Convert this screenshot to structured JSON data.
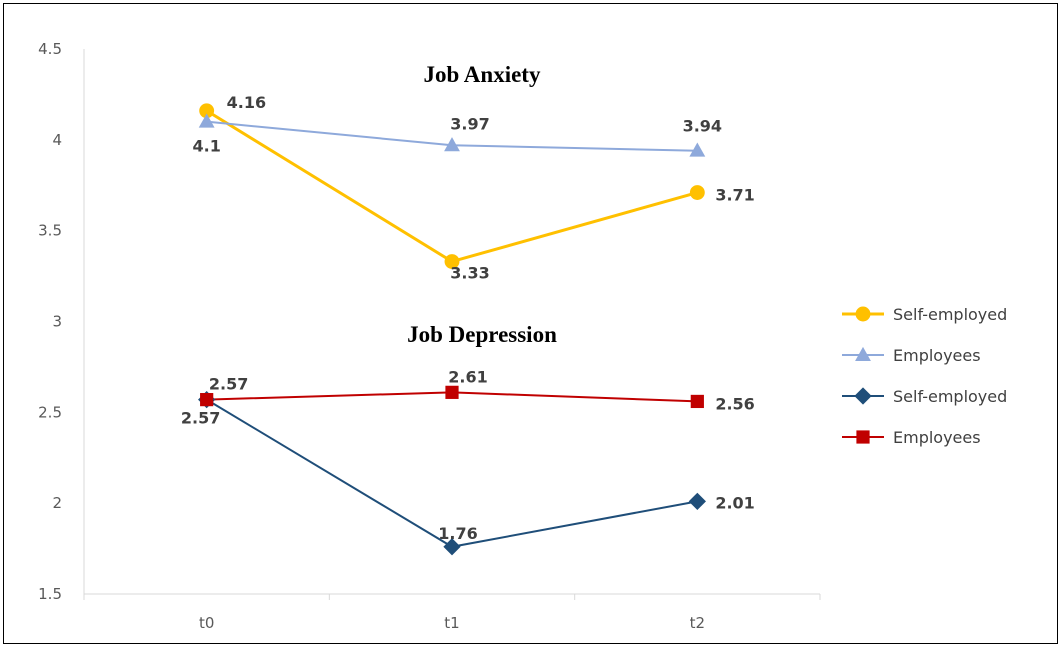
{
  "chart_data": {
    "type": "line",
    "x": [
      "t0",
      "t1",
      "t2"
    ],
    "ylim": [
      1.5,
      4.5
    ],
    "yticks": [
      "1.5",
      "2",
      "2.5",
      "3",
      "3.5",
      "4",
      "4.5"
    ],
    "grid": false,
    "legend_position": "right",
    "annotations": [
      "Job Anxiety",
      "Job Depression"
    ],
    "series": [
      {
        "name": "Self-employed",
        "values": [
          4.16,
          3.33,
          3.71
        ],
        "labels": [
          "4.16",
          "3.33",
          "3.71"
        ],
        "color": "#FFC000",
        "marker": "circle"
      },
      {
        "name": "Employees",
        "values": [
          4.1,
          3.97,
          3.94
        ],
        "labels": [
          "4.1",
          "3.97",
          "3.94"
        ],
        "color": "#8EA9DB",
        "marker": "triangle"
      },
      {
        "name": "Self-employed",
        "values": [
          2.57,
          1.76,
          2.01
        ],
        "labels": [
          "2.57",
          "1.76",
          "2.01"
        ],
        "color": "#1F4E79",
        "marker": "diamond"
      },
      {
        "name": "Employees",
        "values": [
          2.57,
          2.61,
          2.56
        ],
        "labels": [
          "2.57",
          "2.61",
          "2.56"
        ],
        "color": "#C00000",
        "marker": "square"
      }
    ]
  }
}
